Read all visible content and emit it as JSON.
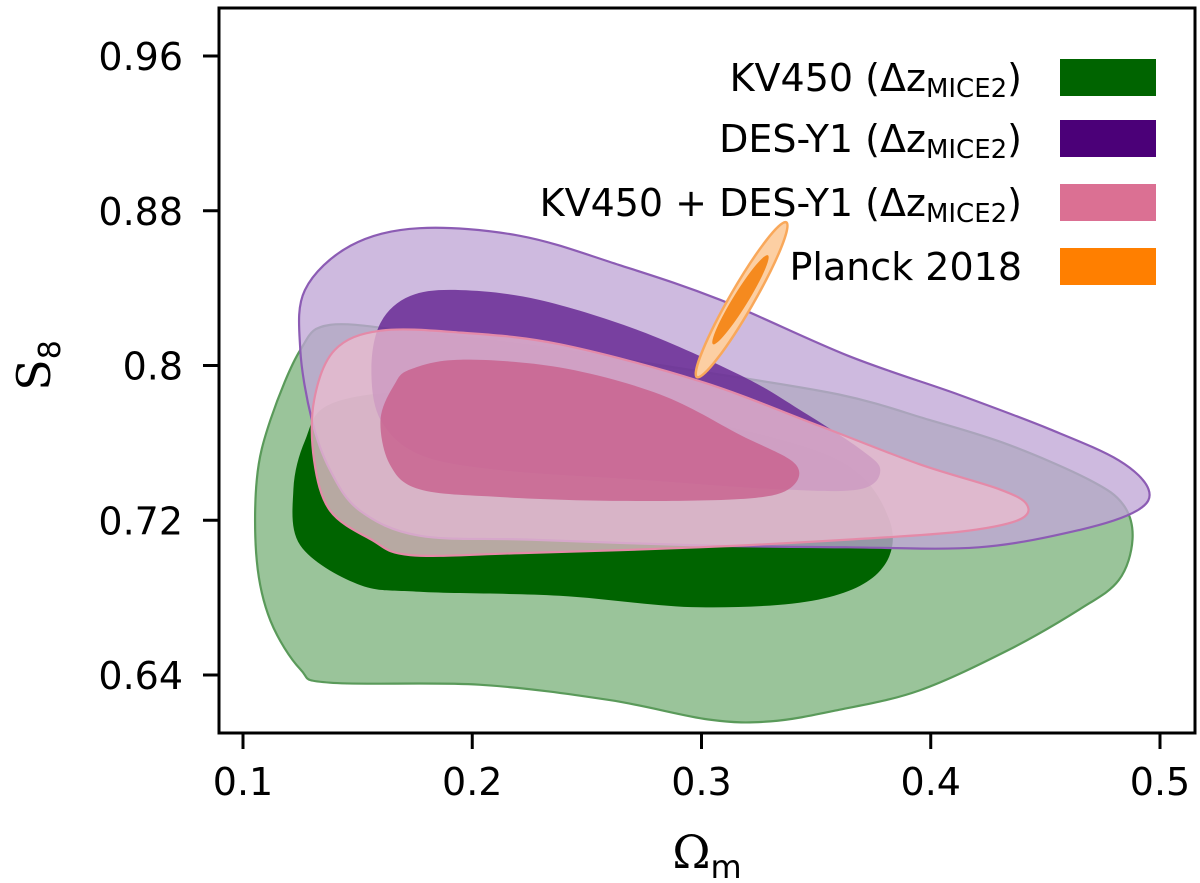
{
  "chart_data": {
    "type": "contour",
    "title": "",
    "xlabel": "Ωm",
    "xlabel_main": "Ω",
    "xlabel_sub": "m",
    "ylabel": "S8",
    "ylabel_main": "S",
    "ylabel_sub": "8",
    "xlim": [
      0.09,
      0.515
    ],
    "ylim": [
      0.6025,
      0.985
    ],
    "xticks": [
      0.1,
      0.2,
      0.3,
      0.4,
      0.5
    ],
    "xtick_labels": [
      "0.1",
      "0.2",
      "0.3",
      "0.4",
      "0.5"
    ],
    "yticks": [
      0.64,
      0.72,
      0.8,
      0.88,
      0.96
    ],
    "ytick_labels": [
      "0.64",
      "0.72",
      "0.8",
      "0.88",
      "0.96"
    ],
    "grid": false,
    "legend_position": "top-right",
    "series": [
      {
        "name": "KV450 (ΔzMICE2)",
        "label_main": "KV450 (Δz",
        "label_sub": "MICE2",
        "label_end": ")",
        "color": "#006400",
        "outer_fill": "#9ac49a",
        "inner_fill": "#006400",
        "edge": "#5a9a5a",
        "levels": [
          "68%",
          "95%"
        ],
        "outer": [
          [
            0.138,
            0.821
          ],
          [
            0.177,
            0.817
          ],
          [
            0.238,
            0.808
          ],
          [
            0.299,
            0.797
          ],
          [
            0.36,
            0.785
          ],
          [
            0.399,
            0.772
          ],
          [
            0.434,
            0.759
          ],
          [
            0.469,
            0.741
          ],
          [
            0.484,
            0.728
          ],
          [
            0.488,
            0.71
          ],
          [
            0.482,
            0.689
          ],
          [
            0.465,
            0.674
          ],
          [
            0.434,
            0.653
          ],
          [
            0.395,
            0.632
          ],
          [
            0.36,
            0.622
          ],
          [
            0.33,
            0.616
          ],
          [
            0.303,
            0.617
          ],
          [
            0.26,
            0.627
          ],
          [
            0.203,
            0.635
          ],
          [
            0.138,
            0.636
          ],
          [
            0.125,
            0.643
          ],
          [
            0.112,
            0.668
          ],
          [
            0.106,
            0.699
          ],
          [
            0.106,
            0.741
          ],
          [
            0.112,
            0.772
          ],
          [
            0.125,
            0.808
          ]
        ],
        "inner": [
          [
            0.138,
            0.78
          ],
          [
            0.177,
            0.787
          ],
          [
            0.238,
            0.785
          ],
          [
            0.299,
            0.772
          ],
          [
            0.36,
            0.751
          ],
          [
            0.382,
            0.72
          ],
          [
            0.378,
            0.694
          ],
          [
            0.351,
            0.679
          ],
          [
            0.299,
            0.675
          ],
          [
            0.238,
            0.681
          ],
          [
            0.177,
            0.683
          ],
          [
            0.15,
            0.687
          ],
          [
            0.125,
            0.707
          ],
          [
            0.122,
            0.736
          ],
          [
            0.127,
            0.761
          ]
        ]
      },
      {
        "name": "DES-Y1 (ΔzMICE2)",
        "label_main": "DES-Y1 (Δz",
        "label_sub": "MICE2",
        "label_end": ")",
        "color": "#4b0078",
        "outer_fill": "#c0a6d6",
        "inner_fill": "#652592",
        "edge": "#8c5cb4",
        "levels": [
          "68%",
          "95%"
        ],
        "outer": [
          [
            0.127,
            0.839
          ],
          [
            0.147,
            0.862
          ],
          [
            0.177,
            0.871
          ],
          [
            0.221,
            0.867
          ],
          [
            0.264,
            0.852
          ],
          [
            0.308,
            0.834
          ],
          [
            0.364,
            0.805
          ],
          [
            0.412,
            0.785
          ],
          [
            0.452,
            0.767
          ],
          [
            0.482,
            0.751
          ],
          [
            0.495,
            0.736
          ],
          [
            0.49,
            0.725
          ],
          [
            0.465,
            0.715
          ],
          [
            0.421,
            0.706
          ],
          [
            0.364,
            0.706
          ],
          [
            0.299,
            0.707
          ],
          [
            0.225,
            0.71
          ],
          [
            0.177,
            0.712
          ],
          [
            0.151,
            0.725
          ],
          [
            0.138,
            0.746
          ],
          [
            0.13,
            0.772
          ],
          [
            0.125,
            0.808
          ]
        ],
        "inner": [
          [
            0.16,
            0.822
          ],
          [
            0.173,
            0.836
          ],
          [
            0.195,
            0.839
          ],
          [
            0.229,
            0.834
          ],
          [
            0.273,
            0.818
          ],
          [
            0.317,
            0.795
          ],
          [
            0.343,
            0.777
          ],
          [
            0.369,
            0.757
          ],
          [
            0.378,
            0.746
          ],
          [
            0.369,
            0.736
          ],
          [
            0.334,
            0.736
          ],
          [
            0.273,
            0.741
          ],
          [
            0.212,
            0.746
          ],
          [
            0.177,
            0.754
          ],
          [
            0.16,
            0.772
          ],
          [
            0.156,
            0.798
          ]
        ]
      },
      {
        "name": "KV450 + DES-Y1 (ΔzMICE2)",
        "label_main": "KV450 + DES-Y1 (Δz",
        "label_sub": "MICE2",
        "label_end": ")",
        "color": "#db7093",
        "outer_fill": "#eabcd0",
        "inner_fill": "#c8608e",
        "edge": "#e48aa8",
        "levels": [
          "68%",
          "95%"
        ],
        "outer": [
          [
            0.14,
            0.808
          ],
          [
            0.16,
            0.818
          ],
          [
            0.195,
            0.817
          ],
          [
            0.238,
            0.811
          ],
          [
            0.299,
            0.792
          ],
          [
            0.351,
            0.769
          ],
          [
            0.395,
            0.749
          ],
          [
            0.43,
            0.736
          ],
          [
            0.442,
            0.728
          ],
          [
            0.438,
            0.72
          ],
          [
            0.412,
            0.714
          ],
          [
            0.364,
            0.71
          ],
          [
            0.299,
            0.706
          ],
          [
            0.221,
            0.703
          ],
          [
            0.173,
            0.702
          ],
          [
            0.156,
            0.71
          ],
          [
            0.138,
            0.725
          ],
          [
            0.131,
            0.751
          ],
          [
            0.131,
            0.782
          ]
        ],
        "inner": [
          [
            0.173,
            0.798
          ],
          [
            0.195,
            0.803
          ],
          [
            0.238,
            0.799
          ],
          [
            0.282,
            0.785
          ],
          [
            0.317,
            0.764
          ],
          [
            0.341,
            0.749
          ],
          [
            0.338,
            0.736
          ],
          [
            0.317,
            0.731
          ],
          [
            0.264,
            0.73
          ],
          [
            0.212,
            0.732
          ],
          [
            0.177,
            0.736
          ],
          [
            0.164,
            0.749
          ],
          [
            0.16,
            0.772
          ],
          [
            0.166,
            0.79
          ]
        ]
      },
      {
        "name": "Planck 2018",
        "label_main": "Planck 2018",
        "label_sub": "",
        "label_end": "",
        "color": "#ff7f00",
        "outer_fill": "#fccfa3",
        "inner_fill": "#f58a1f",
        "edge": "#f9a85a",
        "levels": [
          "68%",
          "95%"
        ],
        "ellipse": {
          "center": [
            0.3175,
            0.834
          ],
          "outer_end_low": [
            0.298,
            0.794
          ],
          "outer_end_high": [
            0.337,
            0.874
          ],
          "outer_half_width": 0.0052,
          "inner_end_low": [
            0.305,
            0.811
          ],
          "inner_end_high": [
            0.329,
            0.857
          ],
          "inner_half_width": 0.0032
        }
      }
    ]
  }
}
